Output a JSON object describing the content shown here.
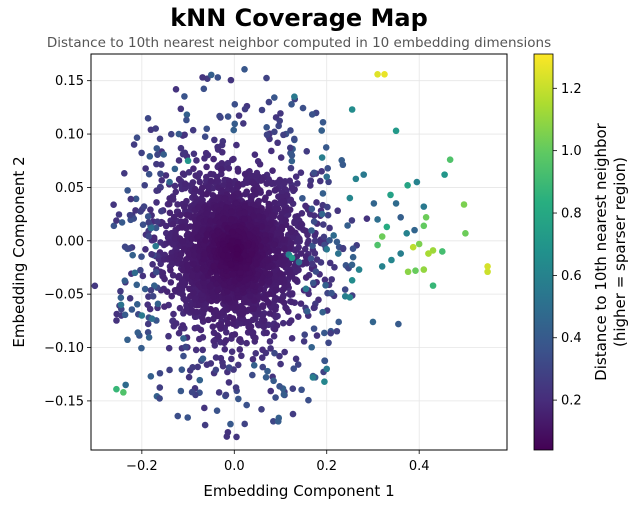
{
  "chart_data": {
    "type": "scatter",
    "title": "kNN Coverage Map",
    "subtitle": "Distance to 10th nearest neighbor computed in 10 embedding dimensions",
    "xlabel": "Embedding Component 1",
    "ylabel": "Embedding Component 2",
    "xlim": [
      -0.31,
      0.59
    ],
    "ylim": [
      -0.196,
      0.175
    ],
    "xticks": [
      -0.2,
      0.0,
      0.2,
      0.4
    ],
    "xtick_labels": [
      "−0.2",
      "0.0",
      "0.2",
      "0.4"
    ],
    "yticks": [
      -0.15,
      -0.1,
      -0.05,
      0.0,
      0.05,
      0.1,
      0.15
    ],
    "ytick_labels": [
      "−0.15",
      "−0.10",
      "−0.05",
      "0.00",
      "0.05",
      "0.10",
      "0.15"
    ],
    "grid": true,
    "colormap": "viridis",
    "colorbar": {
      "label_line1": "Distance to 10th nearest neighbor",
      "label_line2": "(higher = sparser region)",
      "range": [
        0.04,
        1.31
      ],
      "ticks": [
        0.2,
        0.4,
        0.6,
        0.8,
        1.0,
        1.2
      ],
      "tick_labels": [
        "0.2",
        "0.4",
        "0.6",
        "0.8",
        "1.0",
        "1.2"
      ]
    },
    "core_cloud": {
      "description_free": true,
      "center": [
        0.0,
        -0.01
      ],
      "spread": [
        0.075,
        0.038
      ],
      "count": 2400,
      "value_range": [
        0.04,
        0.22
      ]
    },
    "points": [
      {
        "x": 0.31,
        "y": 0.156,
        "v": 1.25
      },
      {
        "x": 0.325,
        "y": 0.156,
        "v": 1.27
      },
      {
        "x": 0.548,
        "y": -0.024,
        "v": 1.23
      },
      {
        "x": 0.548,
        "y": -0.029,
        "v": 1.21
      },
      {
        "x": 0.42,
        "y": -0.012,
        "v": 1.14
      },
      {
        "x": 0.43,
        "y": -0.009,
        "v": 1.12
      },
      {
        "x": 0.497,
        "y": 0.034,
        "v": 1.05
      },
      {
        "x": 0.5,
        "y": 0.007,
        "v": 1.02
      },
      {
        "x": 0.467,
        "y": 0.076,
        "v": 0.95
      },
      {
        "x": 0.41,
        "y": -0.027,
        "v": 1.1
      },
      {
        "x": 0.4,
        "y": -0.003,
        "v": 1.05
      },
      {
        "x": 0.43,
        "y": -0.042,
        "v": 0.88
      },
      {
        "x": 0.45,
        "y": -0.01,
        "v": 0.92
      },
      {
        "x": 0.415,
        "y": 0.022,
        "v": 1.02
      },
      {
        "x": 0.41,
        "y": 0.014,
        "v": 1.0
      },
      {
        "x": 0.387,
        "y": -0.006,
        "v": 1.18
      },
      {
        "x": 0.376,
        "y": -0.029,
        "v": 1.08
      },
      {
        "x": 0.392,
        "y": -0.028,
        "v": 1.01
      },
      {
        "x": 0.35,
        "y": 0.103,
        "v": 0.72
      },
      {
        "x": 0.395,
        "y": 0.055,
        "v": 0.6
      },
      {
        "x": 0.455,
        "y": 0.062,
        "v": 0.7
      },
      {
        "x": 0.375,
        "y": 0.052,
        "v": 0.78
      },
      {
        "x": 0.33,
        "y": 0.013,
        "v": 0.82
      },
      {
        "x": 0.31,
        "y": -0.004,
        "v": 0.95
      },
      {
        "x": 0.32,
        "y": 0.004,
        "v": 1.02
      },
      {
        "x": 0.338,
        "y": 0.043,
        "v": 0.76
      },
      {
        "x": 0.255,
        "y": 0.123,
        "v": 0.65
      },
      {
        "x": 0.263,
        "y": 0.058,
        "v": 0.6
      },
      {
        "x": 0.28,
        "y": 0.062,
        "v": 0.55
      },
      {
        "x": 0.25,
        "y": 0.04,
        "v": 0.62
      },
      {
        "x": 0.19,
        "y": 0.078,
        "v": 0.58
      },
      {
        "x": 0.34,
        "y": -0.018,
        "v": 0.62
      },
      {
        "x": 0.36,
        "y": -0.012,
        "v": 0.58
      },
      {
        "x": 0.373,
        "y": 0.007,
        "v": 0.6
      },
      {
        "x": 0.39,
        "y": 0.01,
        "v": 0.45
      },
      {
        "x": 0.36,
        "y": 0.022,
        "v": 0.42
      },
      {
        "x": 0.35,
        "y": 0.035,
        "v": 0.48
      },
      {
        "x": 0.41,
        "y": 0.032,
        "v": 0.55
      },
      {
        "x": 0.31,
        "y": 0.02,
        "v": 0.5
      },
      {
        "x": 0.302,
        "y": 0.035,
        "v": 0.45
      },
      {
        "x": 0.32,
        "y": -0.024,
        "v": 0.6
      },
      {
        "x": 0.27,
        "y": -0.027,
        "v": 0.6
      },
      {
        "x": 0.255,
        "y": -0.037,
        "v": 0.65
      },
      {
        "x": 0.24,
        "y": -0.052,
        "v": 0.58
      },
      {
        "x": 0.25,
        "y": -0.053,
        "v": 0.62
      },
      {
        "x": 0.118,
        "y": -0.013,
        "v": 0.6
      },
      {
        "x": 0.125,
        "y": -0.016,
        "v": 0.72
      },
      {
        "x": 0.155,
        "y": -0.045,
        "v": 0.55
      },
      {
        "x": 0.2,
        "y": -0.12,
        "v": 0.55
      },
      {
        "x": 0.195,
        "y": -0.132,
        "v": 0.62
      },
      {
        "x": 0.17,
        "y": -0.128,
        "v": 0.58
      },
      {
        "x": 0.3,
        "y": -0.076,
        "v": 0.45
      },
      {
        "x": 0.355,
        "y": -0.078,
        "v": 0.4
      },
      {
        "x": 0.13,
        "y": 0.135,
        "v": 0.55
      },
      {
        "x": 0.2,
        "y": 0.06,
        "v": 0.5
      },
      {
        "x": 0.19,
        "y": 0.025,
        "v": 0.45
      },
      {
        "x": 0.2,
        "y": -0.008,
        "v": 0.55
      },
      {
        "x": 0.215,
        "y": 0.005,
        "v": 0.48
      },
      {
        "x": 0.225,
        "y": -0.012,
        "v": 0.52
      },
      {
        "x": 0.14,
        "y": -0.02,
        "v": 0.5
      },
      {
        "x": -0.1,
        "y": 0.075,
        "v": 0.7
      },
      {
        "x": -0.17,
        "y": -0.005,
        "v": 0.55
      },
      {
        "x": -0.18,
        "y": 0.012,
        "v": 0.5
      },
      {
        "x": -0.215,
        "y": -0.03,
        "v": 0.48
      },
      {
        "x": -0.245,
        "y": -0.06,
        "v": 0.52
      },
      {
        "x": -0.2,
        "y": -0.07,
        "v": 0.55
      },
      {
        "x": -0.178,
        "y": -0.073,
        "v": 0.5
      },
      {
        "x": -0.255,
        "y": -0.139,
        "v": 0.88
      },
      {
        "x": -0.24,
        "y": -0.142,
        "v": 0.95
      },
      {
        "x": -0.235,
        "y": -0.135,
        "v": 0.48
      },
      {
        "x": -0.14,
        "y": 0.055,
        "v": 0.45
      },
      {
        "x": -0.12,
        "y": 0.1,
        "v": 0.4
      }
    ]
  }
}
